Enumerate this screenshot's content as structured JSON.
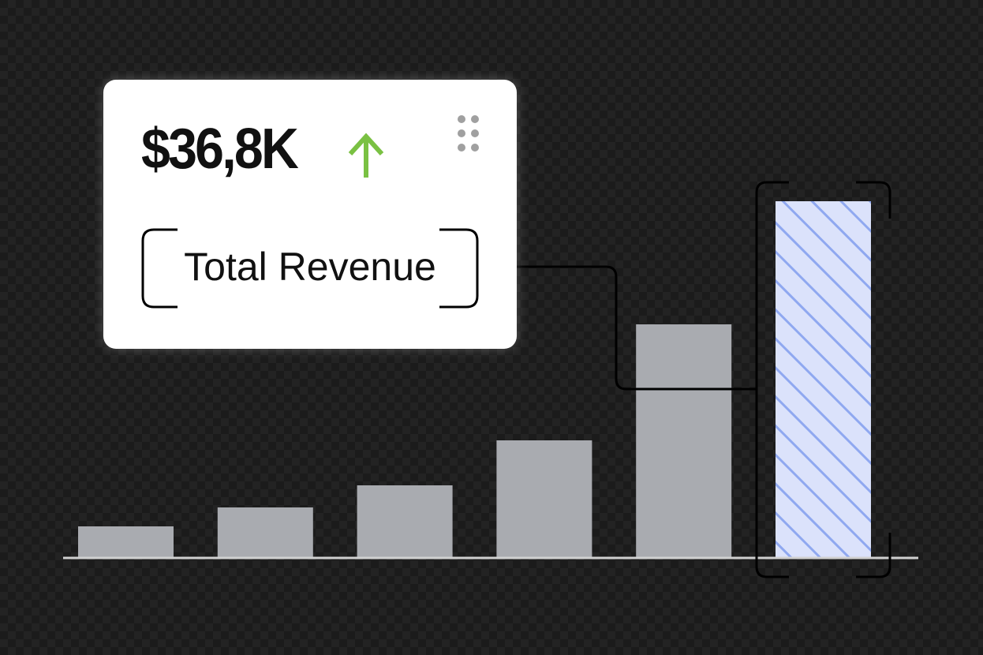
{
  "kpi_card": {
    "value": "$36,8K",
    "trend": "up",
    "trend_color": "#7ac143",
    "label": "Total Revenue",
    "menu_icon": "drag-handle-icon"
  },
  "chart": {
    "bar_color": "#a9abb0",
    "highlight_fill": "#dbe2fb",
    "highlight_stripe": "#8fa8f0",
    "relative_values": [
      39,
      63,
      91,
      148,
      295,
      451
    ],
    "highlighted_index": 5
  }
}
